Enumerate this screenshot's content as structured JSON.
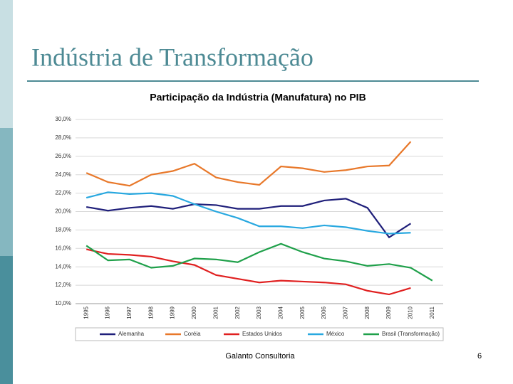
{
  "slide": {
    "title": "Indústria de Transformação",
    "footer": "Galanto Consultoria",
    "page_number": "6"
  },
  "chart_data": {
    "type": "line",
    "title": "Participação da Indústria (Manufatura) no PIB",
    "categories": [
      "1995",
      "1996",
      "1997",
      "1998",
      "1999",
      "2000",
      "2001",
      "2002",
      "2003",
      "2004",
      "2005",
      "2006",
      "2007",
      "2008",
      "2009",
      "2010",
      "2011"
    ],
    "series": [
      {
        "name": "Alemanha",
        "color": "#1f1f7a",
        "values": [
          20.5,
          20.1,
          20.4,
          20.6,
          20.3,
          20.8,
          20.7,
          20.3,
          20.3,
          20.6,
          20.6,
          21.2,
          21.4,
          20.4,
          17.2,
          18.7,
          null
        ]
      },
      {
        "name": "Coréia",
        "color": "#e8782a",
        "values": [
          24.2,
          23.2,
          22.8,
          24.0,
          24.4,
          25.2,
          23.7,
          23.2,
          22.9,
          24.9,
          24.7,
          24.3,
          24.5,
          24.9,
          25.0,
          27.6,
          null
        ]
      },
      {
        "name": "Estados Unidos",
        "color": "#e02020",
        "values": [
          15.9,
          15.4,
          15.3,
          15.1,
          14.6,
          14.2,
          13.1,
          12.7,
          12.3,
          12.5,
          12.4,
          12.3,
          12.1,
          11.4,
          11.0,
          11.7,
          null
        ]
      },
      {
        "name": "México",
        "color": "#28a8e0",
        "values": [
          21.5,
          22.1,
          21.9,
          22.0,
          21.7,
          20.8,
          20.0,
          19.3,
          18.4,
          18.4,
          18.2,
          18.5,
          18.3,
          17.9,
          17.6,
          17.7,
          null
        ]
      },
      {
        "name": "Brasil (Transformação)",
        "color": "#1fa04a",
        "values": [
          16.3,
          14.7,
          14.8,
          13.9,
          14.1,
          14.9,
          14.8,
          14.5,
          15.6,
          16.5,
          15.6,
          14.9,
          14.6,
          14.1,
          14.3,
          13.9,
          12.5
        ]
      }
    ],
    "ylim": [
      10,
      30
    ],
    "yticks": [
      {
        "value": 10,
        "label": "10,0%"
      },
      {
        "value": 12,
        "label": "12,0%"
      },
      {
        "value": 14,
        "label": "14,0%"
      },
      {
        "value": 16,
        "label": "16,0%"
      },
      {
        "value": 18,
        "label": "18,0%"
      },
      {
        "value": 20,
        "label": "20,0%"
      },
      {
        "value": 22,
        "label": "22,0%"
      },
      {
        "value": 24,
        "label": "24,0%"
      },
      {
        "value": 26,
        "label": "26,0%"
      },
      {
        "value": 28,
        "label": "28,0%"
      },
      {
        "value": 30,
        "label": "30,0%"
      }
    ],
    "grid": true,
    "legend": "bottom"
  }
}
